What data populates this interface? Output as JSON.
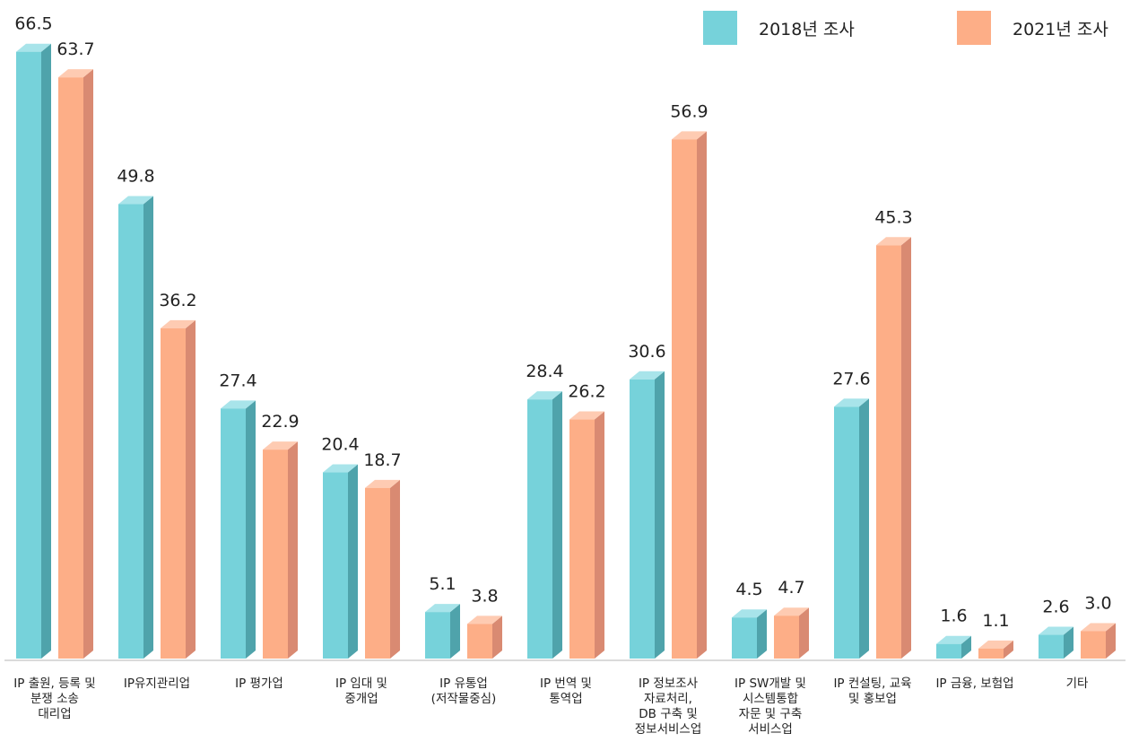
{
  "chart_data": {
    "type": "bar",
    "categories": [
      "IP 출원, 등록 및\n분쟁 소송\n대리업",
      "IP유지관리업",
      "IP 평가업",
      "IP 임대 및\n중개업",
      "IP 유통업\n(저작물중심)",
      "IP 번역 및\n통역업",
      "IP 정보조사\n자료처리,\nDB 구축 및\n정보서비스업",
      "IP SW개발 및\n시스템통합\n자문 및 구축\n서비스업",
      "IP 컨설팅, 교육\n및 홍보업",
      "IP 금융, 보험업",
      "기타"
    ],
    "series": [
      {
        "name": "2018년 조사",
        "color": "#76d2da",
        "values": [
          66.5,
          49.8,
          27.4,
          20.4,
          5.1,
          28.4,
          30.6,
          4.5,
          27.6,
          1.6,
          2.6
        ]
      },
      {
        "name": "2021년 조사",
        "color": "#fdae87",
        "values": [
          63.7,
          36.2,
          22.9,
          18.7,
          3.8,
          26.2,
          56.9,
          4.7,
          45.3,
          1.1,
          3.0
        ]
      }
    ],
    "value_labels": [
      [
        "66.5",
        "49.8",
        "27.4",
        "20.4",
        "5.1",
        "28.4",
        "30.6",
        "4.5",
        "27.6",
        "1.6",
        "2.6"
      ],
      [
        "63.7",
        "36.2",
        "22.9",
        "18.7",
        "3.8",
        "26.2",
        "56.9",
        "4.7",
        "45.3",
        "1.1",
        "3.0"
      ]
    ],
    "ylim": [
      0,
      70
    ],
    "grid": false,
    "legend_position": "top-right",
    "style": "3d-bar"
  }
}
